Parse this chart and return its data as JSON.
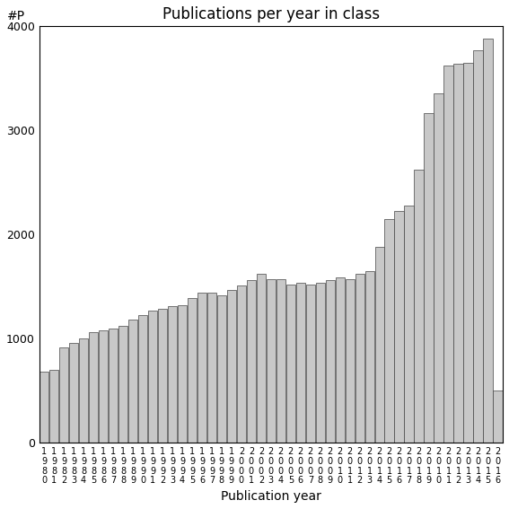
{
  "title": "Publications per year in class",
  "xlabel": "Publication year",
  "ylabel": "#P",
  "ylim": [
    0,
    4000
  ],
  "yticks": [
    0,
    1000,
    2000,
    3000,
    4000
  ],
  "bar_color": "#c8c8c8",
  "bar_edgecolor": "#444444",
  "values": [
    680,
    700,
    920,
    960,
    1000,
    1060,
    1080,
    1100,
    1120,
    1180,
    1230,
    1270,
    1290,
    1310,
    1320,
    1390,
    1440,
    1440,
    1420,
    1470,
    1510,
    1560,
    1620,
    1570,
    1570,
    1520,
    1540,
    1520,
    1540,
    1560,
    1590,
    1570,
    1620,
    1650,
    1880,
    2150,
    2230,
    2280,
    2620,
    3170,
    3360,
    3620,
    3640,
    3650,
    3770,
    3880,
    500
  ],
  "tick_label_rows": [
    [
      "1",
      "1",
      "1",
      "1",
      "1",
      "1",
      "1",
      "1",
      "1",
      "1",
      "1",
      "1",
      "1",
      "1",
      "1",
      "1",
      "1",
      "1",
      "1",
      "1",
      "2",
      "2",
      "2",
      "2",
      "2",
      "2",
      "2",
      "2",
      "2",
      "2",
      "2",
      "2",
      "2",
      "2",
      "2",
      "2",
      "2",
      "2",
      "2",
      "2",
      "2",
      "2",
      "2",
      "2",
      "2",
      "2",
      "2"
    ],
    [
      "9",
      "9",
      "9",
      "9",
      "9",
      "9",
      "9",
      "9",
      "9",
      "9",
      "9",
      "9",
      "9",
      "9",
      "9",
      "9",
      "9",
      "9",
      "9",
      "9",
      "0",
      "0",
      "0",
      "0",
      "0",
      "0",
      "0",
      "0",
      "0",
      "0",
      "0",
      "0",
      "0",
      "0",
      "0",
      "0",
      "0",
      "0",
      "0",
      "0",
      "0",
      "0",
      "0",
      "0",
      "0",
      "0",
      "0"
    ],
    [
      "8",
      "8",
      "8",
      "8",
      "8",
      "8",
      "8",
      "8",
      "8",
      "8",
      "9",
      "9",
      "9",
      "9",
      "9",
      "9",
      "9",
      "9",
      "9",
      "9",
      "0",
      "0",
      "0",
      "0",
      "0",
      "0",
      "0",
      "0",
      "0",
      "0",
      "1",
      "1",
      "1",
      "1",
      "1",
      "1",
      "1",
      "1",
      "1",
      "1",
      "1",
      "1",
      "1",
      "1",
      "1",
      "1",
      "1"
    ],
    [
      "0",
      "1",
      "2",
      "3",
      "4",
      "5",
      "6",
      "7",
      "8",
      "9",
      "0",
      "1",
      "2",
      "3",
      "4",
      "5",
      "6",
      "7",
      "8",
      "9",
      "0",
      "1",
      "2",
      "3",
      "4",
      "5",
      "6",
      "7",
      "8",
      "9",
      "0",
      "1",
      "2",
      "3",
      "4",
      "5",
      "6",
      "7",
      "8",
      "9",
      "0",
      "1",
      "2",
      "3",
      "4",
      "5",
      "6"
    ]
  ],
  "title_fontsize": 12,
  "tick_fontsize": 7,
  "label_fontsize": 10
}
